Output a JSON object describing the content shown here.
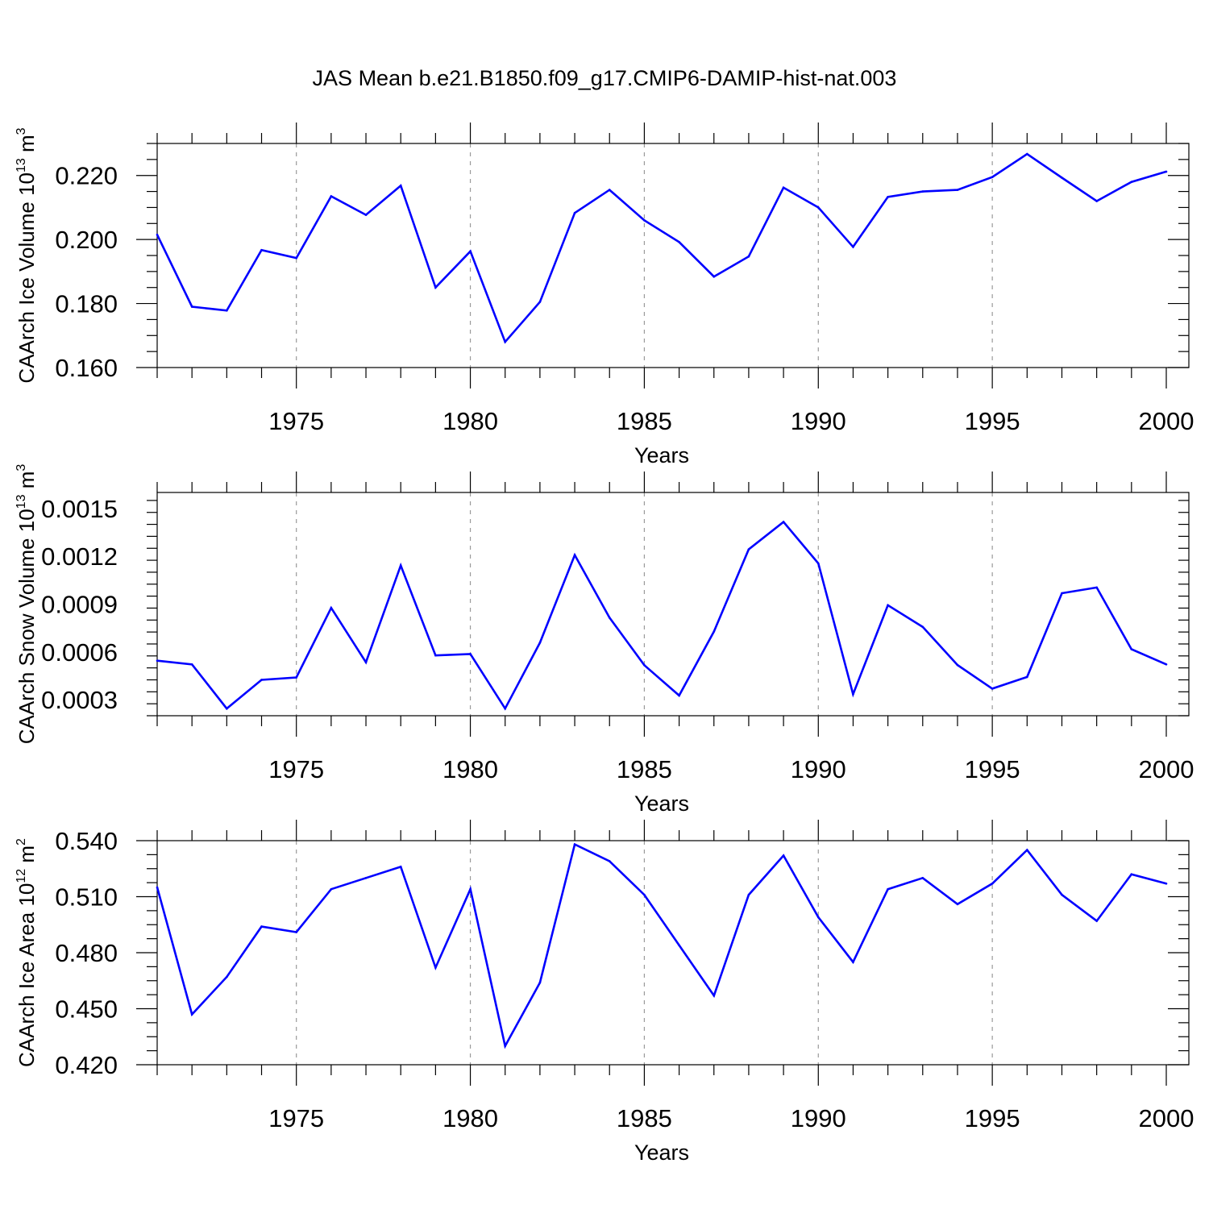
{
  "title": "JAS Mean b.e21.B1850.f09_g17.CMIP6-DAMIP-hist-nat.003",
  "colors": {
    "line": "#0000ff",
    "axis": "#000000",
    "grid": "#9a9a9a"
  },
  "chart_data": [
    {
      "type": "line",
      "ylabel": "CAArch Ice Volume 10",
      "ylabel_exp": "13",
      "ylabel_unit": " m",
      "ylabel_unit_exp": "3",
      "xlabel": "Years",
      "xlim": [
        1971,
        2000
      ],
      "ylim": [
        0.16,
        0.23
      ],
      "yticks": [
        0.16,
        0.18,
        0.2,
        0.22
      ],
      "ytick_labels": [
        "0.160",
        "0.180",
        "0.200",
        "0.220"
      ],
      "xticks": [
        1975,
        1980,
        1985,
        1990,
        1995,
        2000
      ],
      "xtick_labels": [
        "1975",
        "1980",
        "1985",
        "1990",
        "1995",
        "2000"
      ],
      "grid": "vertical dashed at labeled years",
      "x": [
        1971,
        1972,
        1973,
        1974,
        1975,
        1976,
        1977,
        1978,
        1979,
        1980,
        1981,
        1982,
        1983,
        1984,
        1985,
        1986,
        1987,
        1988,
        1989,
        1990,
        1991,
        1992,
        1993,
        1994,
        1995,
        1996,
        1997,
        1998,
        1999,
        2000
      ],
      "values": [
        0.2015,
        0.179,
        0.1778,
        0.1967,
        0.1942,
        0.2135,
        0.2077,
        0.2168,
        0.185,
        0.1963,
        0.168,
        0.1805,
        0.2083,
        0.2155,
        0.206,
        0.1992,
        0.1884,
        0.1947,
        0.2162,
        0.21,
        0.1977,
        0.2133,
        0.215,
        0.2155,
        0.2195,
        0.2267,
        0.2193,
        0.212,
        0.218,
        0.2212
      ]
    },
    {
      "type": "line",
      "ylabel": "CAArch Snow Volume 10",
      "ylabel_exp": "13",
      "ylabel_unit": " m",
      "ylabel_unit_exp": "3",
      "xlabel": "Years",
      "xlim": [
        1971,
        2000
      ],
      "ylim": [
        0.0002,
        0.0016
      ],
      "yticks": [
        0.0003,
        0.0006,
        0.0009,
        0.0012,
        0.0015
      ],
      "ytick_labels": [
        "0.0003",
        "0.0006",
        "0.0009",
        "0.0012",
        "0.0015"
      ],
      "xticks": [
        1975,
        1980,
        1985,
        1990,
        1995,
        2000
      ],
      "xtick_labels": [
        "1975",
        "1980",
        "1985",
        "1990",
        "1995",
        "2000"
      ],
      "grid": "vertical dashed at labeled years",
      "x": [
        1971,
        1972,
        1973,
        1974,
        1975,
        1976,
        1977,
        1978,
        1979,
        1980,
        1981,
        1982,
        1983,
        1984,
        1985,
        1986,
        1987,
        1988,
        1989,
        1990,
        1991,
        1992,
        1993,
        1994,
        1995,
        1996,
        1997,
        1998,
        1999,
        2000
      ],
      "values": [
        0.000545,
        0.000522,
        0.000245,
        0.000425,
        0.00044,
        0.000876,
        0.000535,
        0.001142,
        0.000578,
        0.000587,
        0.000245,
        0.000658,
        0.001208,
        0.000815,
        0.000517,
        0.000327,
        0.000728,
        0.001243,
        0.001415,
        0.001155,
        0.000335,
        0.000893,
        0.000757,
        0.000518,
        0.00037,
        0.000443,
        0.000968,
        0.001004,
        0.000617,
        0.000522
      ]
    },
    {
      "type": "line",
      "ylabel": "CAArch Ice Area 10",
      "ylabel_exp": "12",
      "ylabel_unit": " m",
      "ylabel_unit_exp": "2",
      "xlabel": "Years",
      "xlim": [
        1971,
        2000
      ],
      "ylim": [
        0.42,
        0.54
      ],
      "yticks": [
        0.42,
        0.45,
        0.48,
        0.51,
        0.54
      ],
      "ytick_labels": [
        "0.420",
        "0.450",
        "0.480",
        "0.510",
        "0.540"
      ],
      "xticks": [
        1975,
        1980,
        1985,
        1990,
        1995,
        2000
      ],
      "xtick_labels": [
        "1975",
        "1980",
        "1985",
        "1990",
        "1995",
        "2000"
      ],
      "grid": "vertical dashed at labeled years",
      "x": [
        1971,
        1972,
        1973,
        1974,
        1975,
        1976,
        1977,
        1978,
        1979,
        1980,
        1981,
        1982,
        1983,
        1984,
        1985,
        1986,
        1987,
        1988,
        1989,
        1990,
        1991,
        1992,
        1993,
        1994,
        1995,
        1996,
        1997,
        1998,
        1999,
        2000
      ],
      "values": [
        0.515,
        0.447,
        0.467,
        0.494,
        0.491,
        0.514,
        0.52,
        0.526,
        0.472,
        0.514,
        0.43,
        0.464,
        0.538,
        0.529,
        0.511,
        0.484,
        0.457,
        0.511,
        0.532,
        0.499,
        0.475,
        0.514,
        0.52,
        0.506,
        0.517,
        0.535,
        0.511,
        0.497,
        0.522,
        0.517
      ]
    }
  ]
}
